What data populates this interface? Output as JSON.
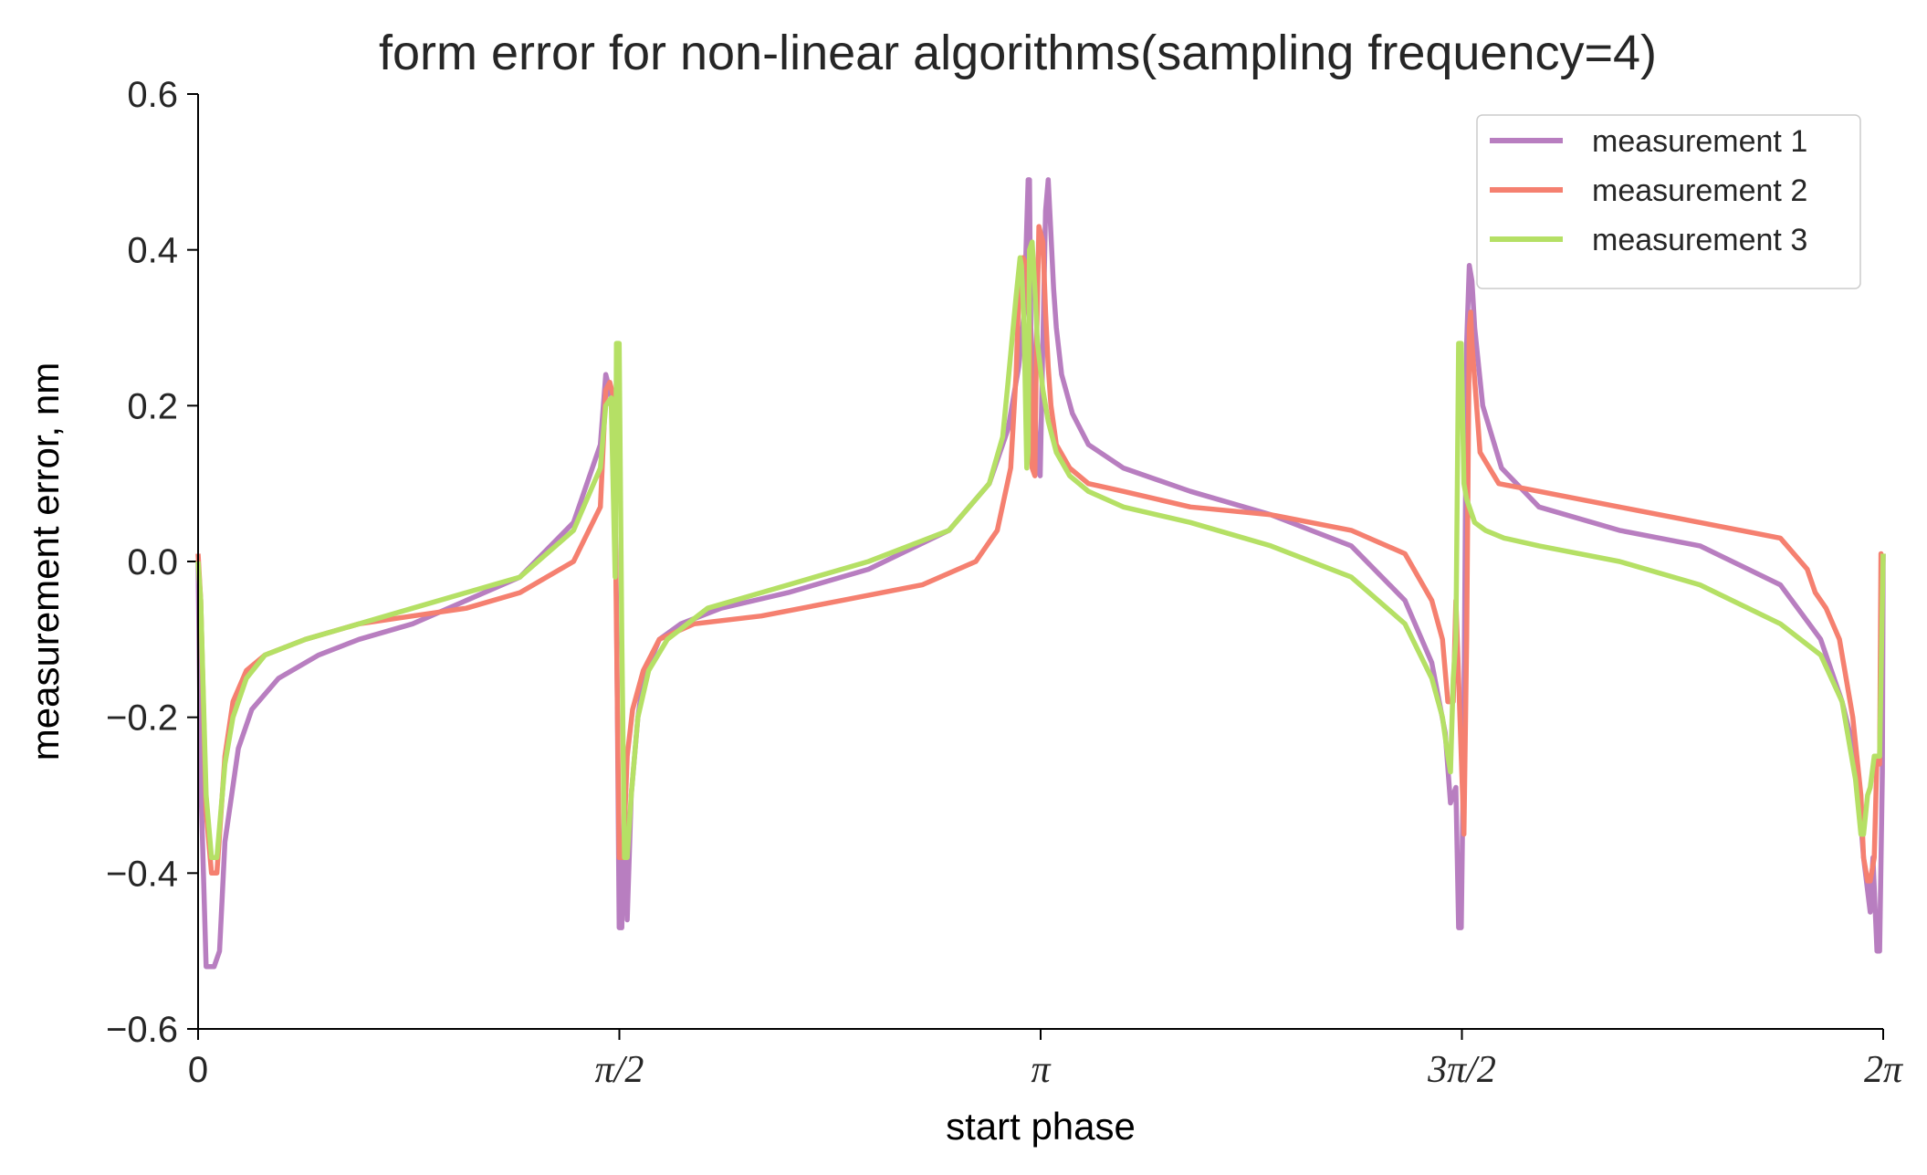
{
  "chart_data": {
    "type": "line",
    "title": "form error for non-linear algorithms(sampling frequency=4)",
    "xlabel": "start phase",
    "ylabel": "measurement error, nm",
    "xlim": [
      0,
      6.2832
    ],
    "ylim": [
      -0.6,
      0.6
    ],
    "yticks": [
      -0.6,
      -0.4,
      -0.2,
      0.0,
      0.2,
      0.4,
      0.6
    ],
    "ytick_labels": [
      "−0.6",
      "−0.4",
      "−0.2",
      "0.0",
      "0.2",
      "0.4",
      "0.6"
    ],
    "xticks": [
      0,
      1.5708,
      3.1416,
      4.7124,
      6.2832
    ],
    "xtick_labels": [
      "0",
      "π/2",
      "π",
      "3π/2",
      "2π"
    ],
    "grid": false,
    "legend_position": "top-right",
    "series": [
      {
        "name": "measurement 1",
        "color": "#b87ec0",
        "x": [
          0.0,
          0.01,
          0.03,
          0.06,
          0.08,
          0.1,
          0.15,
          0.2,
          0.3,
          0.45,
          0.6,
          0.8,
          1.0,
          1.2,
          1.4,
          1.5,
          1.52,
          1.535,
          1.55,
          1.56,
          1.57,
          1.58,
          1.59,
          1.6,
          1.615,
          1.64,
          1.66,
          1.72,
          1.8,
          1.95,
          2.2,
          2.5,
          2.8,
          2.95,
          3.02,
          3.06,
          3.08,
          3.095,
          3.1,
          3.105,
          3.12,
          3.13,
          3.14,
          3.16,
          3.17,
          3.18,
          3.19,
          3.2,
          3.22,
          3.26,
          3.32,
          3.45,
          3.7,
          4.0,
          4.3,
          4.5,
          4.6,
          4.65,
          4.67,
          4.69,
          4.7,
          4.71,
          4.72,
          4.73,
          4.74,
          4.75,
          4.76,
          4.79,
          4.86,
          5.0,
          5.3,
          5.6,
          5.9,
          6.05,
          6.13,
          6.18,
          6.21,
          6.235,
          6.245,
          6.26,
          6.27,
          6.28,
          6.2832
        ],
        "values": [
          0.0,
          -0.28,
          -0.52,
          -0.52,
          -0.5,
          -0.36,
          -0.24,
          -0.19,
          -0.15,
          -0.12,
          -0.1,
          -0.08,
          -0.05,
          -0.02,
          0.05,
          0.15,
          0.24,
          0.22,
          0.18,
          -0.05,
          -0.47,
          -0.47,
          -0.3,
          -0.46,
          -0.3,
          -0.2,
          -0.15,
          -0.1,
          -0.08,
          -0.06,
          -0.04,
          -0.01,
          0.04,
          0.1,
          0.17,
          0.25,
          0.32,
          0.49,
          0.49,
          0.3,
          0.2,
          0.12,
          0.11,
          0.45,
          0.49,
          0.42,
          0.35,
          0.3,
          0.24,
          0.19,
          0.15,
          0.12,
          0.09,
          0.06,
          0.02,
          -0.05,
          -0.13,
          -0.22,
          -0.31,
          -0.29,
          -0.47,
          -0.47,
          -0.2,
          0.28,
          0.38,
          0.36,
          0.3,
          0.2,
          0.12,
          0.07,
          0.04,
          0.02,
          -0.03,
          -0.1,
          -0.18,
          -0.25,
          -0.38,
          -0.45,
          -0.38,
          -0.5,
          -0.5,
          -0.27,
          0.01
        ]
      },
      {
        "name": "measurement 2",
        "color": "#f58070",
        "x": [
          0.0,
          0.01,
          0.03,
          0.05,
          0.07,
          0.1,
          0.13,
          0.18,
          0.25,
          0.4,
          0.6,
          0.8,
          1.0,
          1.2,
          1.4,
          1.5,
          1.52,
          1.535,
          1.55,
          1.56,
          1.57,
          1.585,
          1.6,
          1.62,
          1.66,
          1.72,
          1.85,
          2.1,
          2.4,
          2.7,
          2.9,
          2.98,
          3.03,
          3.05,
          3.06,
          3.075,
          3.09,
          3.1,
          3.11,
          3.12,
          3.125,
          3.135,
          3.15,
          3.16,
          3.17,
          3.18,
          3.2,
          3.25,
          3.32,
          3.45,
          3.7,
          4.0,
          4.3,
          4.5,
          4.6,
          4.64,
          4.66,
          4.68,
          4.69,
          4.7,
          4.71,
          4.72,
          4.73,
          4.74,
          4.745,
          4.75,
          4.78,
          4.85,
          5.0,
          5.3,
          5.6,
          5.9,
          6.0,
          6.03,
          6.07,
          6.12,
          6.17,
          6.2,
          6.21,
          6.225,
          6.235,
          6.25,
          6.26,
          6.27,
          6.275,
          6.2832
        ],
        "values": [
          0.01,
          -0.05,
          -0.32,
          -0.4,
          -0.4,
          -0.25,
          -0.18,
          -0.14,
          -0.12,
          -0.1,
          -0.08,
          -0.07,
          -0.06,
          -0.04,
          0.0,
          0.07,
          0.22,
          0.23,
          0.21,
          -0.08,
          -0.38,
          -0.38,
          -0.25,
          -0.19,
          -0.14,
          -0.1,
          -0.08,
          -0.07,
          -0.05,
          -0.03,
          0.0,
          0.04,
          0.12,
          0.24,
          0.34,
          0.39,
          0.38,
          0.3,
          0.12,
          0.11,
          0.25,
          0.43,
          0.41,
          0.32,
          0.25,
          0.2,
          0.15,
          0.12,
          0.1,
          0.09,
          0.07,
          0.06,
          0.04,
          0.01,
          -0.05,
          -0.1,
          -0.18,
          -0.18,
          -0.05,
          -0.15,
          -0.25,
          -0.35,
          -0.1,
          0.3,
          0.32,
          0.28,
          0.14,
          0.1,
          0.09,
          0.07,
          0.05,
          0.03,
          -0.01,
          -0.04,
          -0.06,
          -0.1,
          -0.2,
          -0.3,
          -0.38,
          -0.41,
          -0.41,
          -0.38,
          -0.25,
          -0.26,
          0.01,
          0.0
        ]
      },
      {
        "name": "measurement 3",
        "color": "#b5e065",
        "x": [
          0.0,
          0.01,
          0.03,
          0.05,
          0.07,
          0.1,
          0.13,
          0.18,
          0.25,
          0.4,
          0.6,
          0.8,
          1.0,
          1.2,
          1.4,
          1.5,
          1.52,
          1.54,
          1.555,
          1.56,
          1.57,
          1.58,
          1.59,
          1.6,
          1.615,
          1.64,
          1.68,
          1.75,
          1.9,
          2.2,
          2.5,
          2.8,
          2.95,
          3.0,
          3.02,
          3.05,
          3.065,
          3.07,
          3.08,
          3.09,
          3.095,
          3.1,
          3.11,
          3.12,
          3.13,
          3.15,
          3.17,
          3.2,
          3.25,
          3.32,
          3.45,
          3.7,
          4.0,
          4.3,
          4.5,
          4.6,
          4.64,
          4.66,
          4.67,
          4.68,
          4.69,
          4.7,
          4.71,
          4.72,
          4.73,
          4.76,
          4.8,
          4.87,
          5.0,
          5.3,
          5.6,
          5.9,
          6.05,
          6.13,
          6.18,
          6.2,
          6.21,
          6.225,
          6.235,
          6.25,
          6.26,
          6.27,
          6.2832
        ],
        "values": [
          0.0,
          -0.05,
          -0.3,
          -0.38,
          -0.38,
          -0.26,
          -0.2,
          -0.15,
          -0.12,
          -0.1,
          -0.08,
          -0.06,
          -0.04,
          -0.02,
          0.04,
          0.12,
          0.2,
          0.21,
          -0.02,
          0.28,
          0.28,
          -0.1,
          -0.38,
          -0.38,
          -0.3,
          -0.2,
          -0.14,
          -0.1,
          -0.06,
          -0.03,
          0.0,
          0.04,
          0.1,
          0.16,
          0.23,
          0.34,
          0.39,
          0.38,
          0.3,
          0.12,
          0.14,
          0.4,
          0.41,
          0.35,
          0.28,
          0.22,
          0.18,
          0.14,
          0.11,
          0.09,
          0.07,
          0.05,
          0.02,
          -0.02,
          -0.08,
          -0.15,
          -0.2,
          -0.25,
          -0.27,
          -0.15,
          -0.1,
          0.28,
          0.28,
          0.1,
          0.08,
          0.05,
          0.04,
          0.03,
          0.02,
          0.0,
          -0.03,
          -0.08,
          -0.12,
          -0.18,
          -0.28,
          -0.35,
          -0.35,
          -0.3,
          -0.29,
          -0.25,
          -0.25,
          -0.25,
          0.01
        ]
      }
    ]
  }
}
